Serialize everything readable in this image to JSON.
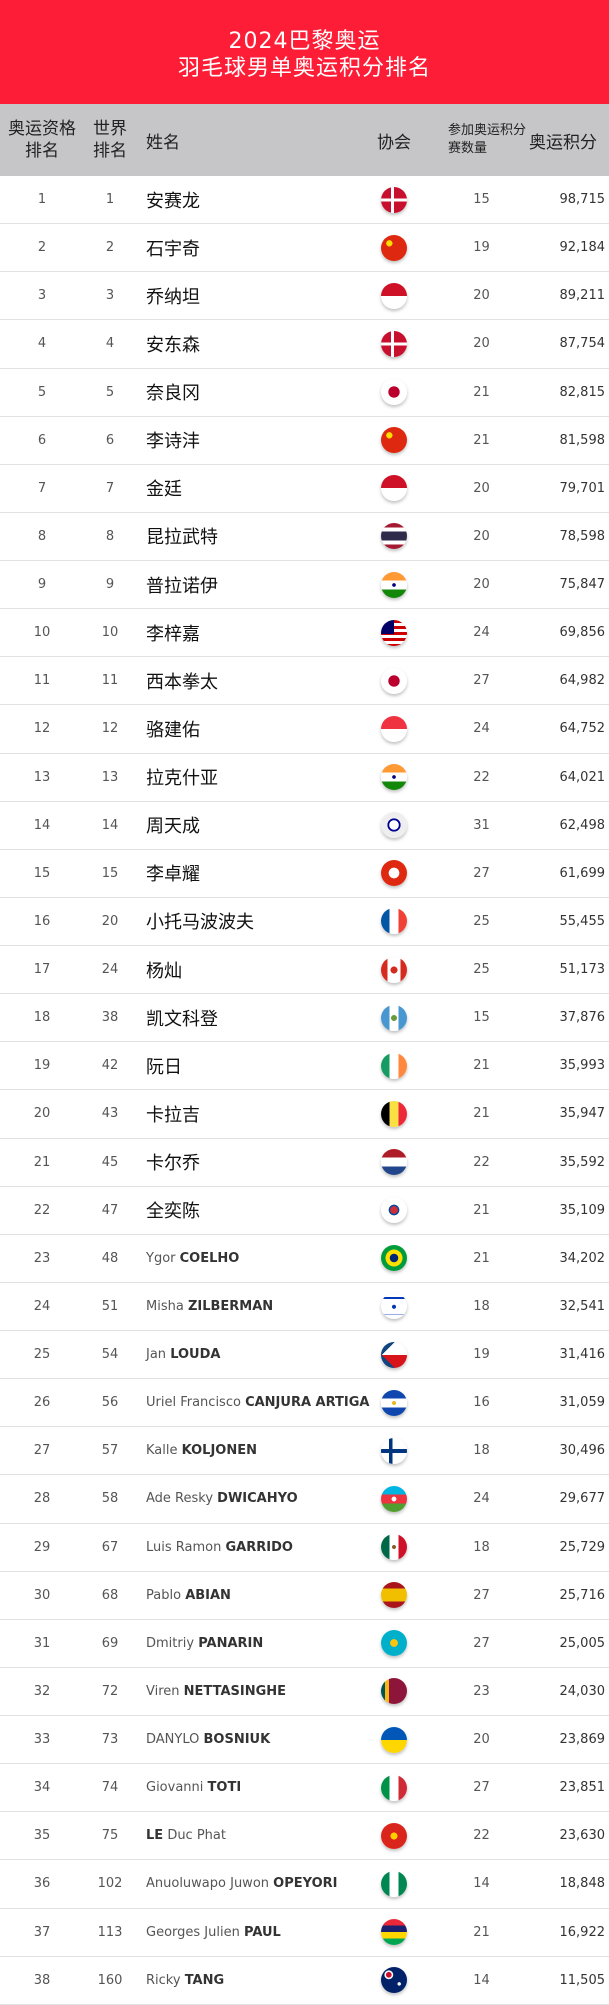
{
  "title": {
    "line1": "2024巴黎奥运",
    "line2": "羽毛球男单奥运积分排名"
  },
  "headers": {
    "olympic_rank": "奥运资格排名",
    "world_rank": "世界排名",
    "name": "姓名",
    "association": "协会",
    "events": "参加奥运积分赛数量",
    "points": "奥运积分"
  },
  "rows": [
    {
      "or": "1",
      "wr": "1",
      "name": "安赛龙",
      "flag": "DK",
      "ev": "15",
      "pts": "98,715"
    },
    {
      "or": "2",
      "wr": "2",
      "name": "石宇奇",
      "flag": "CN",
      "ev": "19",
      "pts": "92,184"
    },
    {
      "or": "3",
      "wr": "3",
      "name": "乔纳坦",
      "flag": "ID",
      "ev": "20",
      "pts": "89,211"
    },
    {
      "or": "4",
      "wr": "4",
      "name": "安东森",
      "flag": "DK",
      "ev": "20",
      "pts": "87,754"
    },
    {
      "or": "5",
      "wr": "5",
      "name": "奈良冈",
      "flag": "JP",
      "ev": "21",
      "pts": "82,815"
    },
    {
      "or": "6",
      "wr": "6",
      "name": "李诗沣",
      "flag": "CN",
      "ev": "21",
      "pts": "81,598"
    },
    {
      "or": "7",
      "wr": "7",
      "name": "金廷",
      "flag": "ID",
      "ev": "20",
      "pts": "79,701"
    },
    {
      "or": "8",
      "wr": "8",
      "name": "昆拉武特",
      "flag": "TH",
      "ev": "20",
      "pts": "78,598"
    },
    {
      "or": "9",
      "wr": "9",
      "name": "普拉诺伊",
      "flag": "IN",
      "ev": "20",
      "pts": "75,847"
    },
    {
      "or": "10",
      "wr": "10",
      "name": "李梓嘉",
      "flag": "MY",
      "ev": "24",
      "pts": "69,856"
    },
    {
      "or": "11",
      "wr": "11",
      "name": "西本拳太",
      "flag": "JP",
      "ev": "27",
      "pts": "64,982"
    },
    {
      "or": "12",
      "wr": "12",
      "name": "骆建佑",
      "flag": "SG",
      "ev": "24",
      "pts": "64,752"
    },
    {
      "or": "13",
      "wr": "13",
      "name": "拉克什亚",
      "flag": "IN",
      "ev": "22",
      "pts": "64,021"
    },
    {
      "or": "14",
      "wr": "14",
      "name": "周天成",
      "flag": "TPE",
      "ev": "31",
      "pts": "62,498"
    },
    {
      "or": "15",
      "wr": "15",
      "name": "李卓耀",
      "flag": "HK",
      "ev": "27",
      "pts": "61,699"
    },
    {
      "or": "16",
      "wr": "20",
      "name": "小托马波波夫",
      "flag": "FR",
      "ev": "25",
      "pts": "55,455"
    },
    {
      "or": "17",
      "wr": "24",
      "name": "杨灿",
      "flag": "CA",
      "ev": "25",
      "pts": "51,173"
    },
    {
      "or": "18",
      "wr": "38",
      "name": "凯文科登",
      "flag": "GT",
      "ev": "15",
      "pts": "37,876"
    },
    {
      "or": "19",
      "wr": "42",
      "name": "阮日",
      "flag": "IE",
      "ev": "21",
      "pts": "35,993"
    },
    {
      "or": "20",
      "wr": "43",
      "name": "卡拉吉",
      "flag": "BE",
      "ev": "21",
      "pts": "35,947"
    },
    {
      "or": "21",
      "wr": "45",
      "name": "卡尔乔",
      "flag": "NL",
      "ev": "22",
      "pts": "35,592"
    },
    {
      "or": "22",
      "wr": "47",
      "name": "全奕陈",
      "flag": "KR",
      "ev": "21",
      "pts": "35,109"
    },
    {
      "or": "23",
      "wr": "48",
      "given": "Ygor",
      "sur": "COELHO",
      "flag": "BR",
      "ev": "21",
      "pts": "34,202"
    },
    {
      "or": "24",
      "wr": "51",
      "given": "Misha",
      "sur": "ZILBERMAN",
      "flag": "IL",
      "ev": "18",
      "pts": "32,541"
    },
    {
      "or": "25",
      "wr": "54",
      "given": "Jan",
      "sur": "LOUDA",
      "flag": "CZ",
      "ev": "19",
      "pts": "31,416"
    },
    {
      "or": "26",
      "wr": "56",
      "given": "Uriel Francisco",
      "sur": "CANJURA ARTIGA",
      "flag": "SV",
      "ev": "16",
      "pts": "31,059"
    },
    {
      "or": "27",
      "wr": "57",
      "given": "Kalle",
      "sur": "KOLJONEN",
      "flag": "FI",
      "ev": "18",
      "pts": "30,496"
    },
    {
      "or": "28",
      "wr": "58",
      "given": "Ade Resky",
      "sur": "DWICAHYO",
      "flag": "AZ",
      "ev": "24",
      "pts": "29,677"
    },
    {
      "or": "29",
      "wr": "67",
      "given": "Luis Ramon",
      "sur": "GARRIDO",
      "flag": "MX",
      "ev": "18",
      "pts": "25,729"
    },
    {
      "or": "30",
      "wr": "68",
      "given": "Pablo",
      "sur": "ABIAN",
      "flag": "ES",
      "ev": "27",
      "pts": "25,716"
    },
    {
      "or": "31",
      "wr": "69",
      "given": "Dmitriy",
      "sur": "PANARIN",
      "flag": "KZ",
      "ev": "27",
      "pts": "25,005"
    },
    {
      "or": "32",
      "wr": "72",
      "given": "Viren",
      "sur": "NETTASINGHE",
      "flag": "LK",
      "ev": "23",
      "pts": "24,030"
    },
    {
      "or": "33",
      "wr": "73",
      "given": "DANYLO",
      "sur": "BOSNIUK",
      "flag": "UA",
      "ev": "20",
      "pts": "23,869"
    },
    {
      "or": "34",
      "wr": "74",
      "given": "Giovanni",
      "sur": "TOTI",
      "flag": "IT",
      "ev": "27",
      "pts": "23,851"
    },
    {
      "or": "35",
      "wr": "75",
      "given": "",
      "sur": "LE",
      "given2": "Duc Phat",
      "flag": "VN",
      "ev": "22",
      "pts": "23,630"
    },
    {
      "or": "36",
      "wr": "102",
      "given": "Anuoluwapo Juwon",
      "sur": "OPEYORI",
      "flag": "NG",
      "ev": "14",
      "pts": "18,848"
    },
    {
      "or": "37",
      "wr": "113",
      "given": "Georges Julien",
      "sur": "PAUL",
      "flag": "MU",
      "ev": "21",
      "pts": "16,922"
    },
    {
      "or": "38",
      "wr": "160",
      "given": "Ricky",
      "sur": "TANG",
      "flag": "AU",
      "ev": "14",
      "pts": "11,505"
    }
  ],
  "colors": {
    "banner": "#fe1d36",
    "header": "#c6c6c8"
  }
}
